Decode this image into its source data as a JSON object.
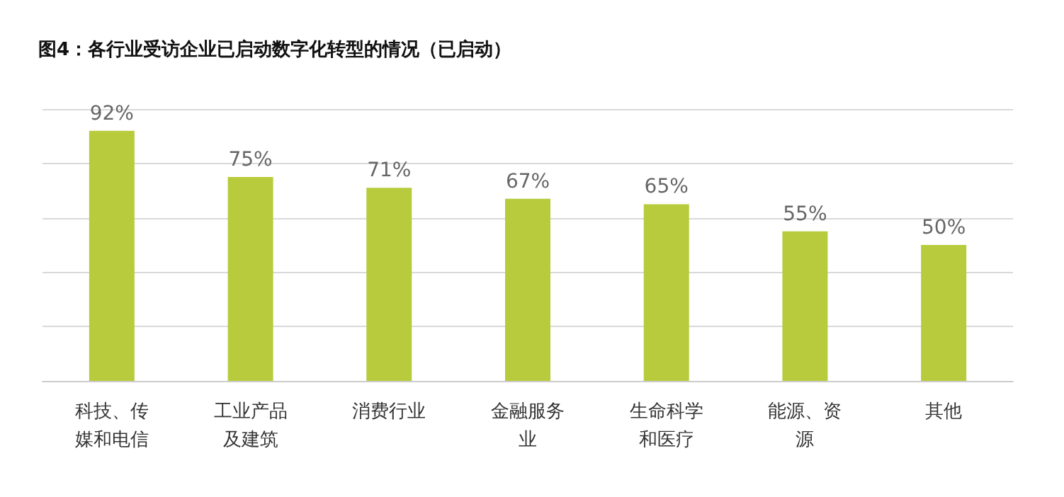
{
  "chart_data": {
    "type": "bar",
    "title": "图4：各行业受访企业已启动数字化转型的情况（已启动）",
    "categories": [
      "科技、传媒和电信",
      "工业产品及建筑",
      "消费行业",
      "金融服务业",
      "生命科学和医疗",
      "能源、资源",
      "其他"
    ],
    "values": [
      92,
      75,
      71,
      67,
      65,
      55,
      50
    ],
    "color": "#b8cb3c",
    "value_labels": [
      "92%",
      "75%",
      "71%",
      "67%",
      "65%",
      "55%",
      "50%"
    ],
    "ylim": [
      0,
      100
    ],
    "yticks": [
      {
        "value": 0,
        "label": null
      },
      {
        "value": 20,
        "label": null
      },
      {
        "value": 40,
        "label": null
      },
      {
        "value": 60,
        "label": null
      },
      {
        "value": 80,
        "label": null
      },
      {
        "value": 100,
        "label": null
      }
    ],
    "tick_labels": "x",
    "grid": "y"
  }
}
